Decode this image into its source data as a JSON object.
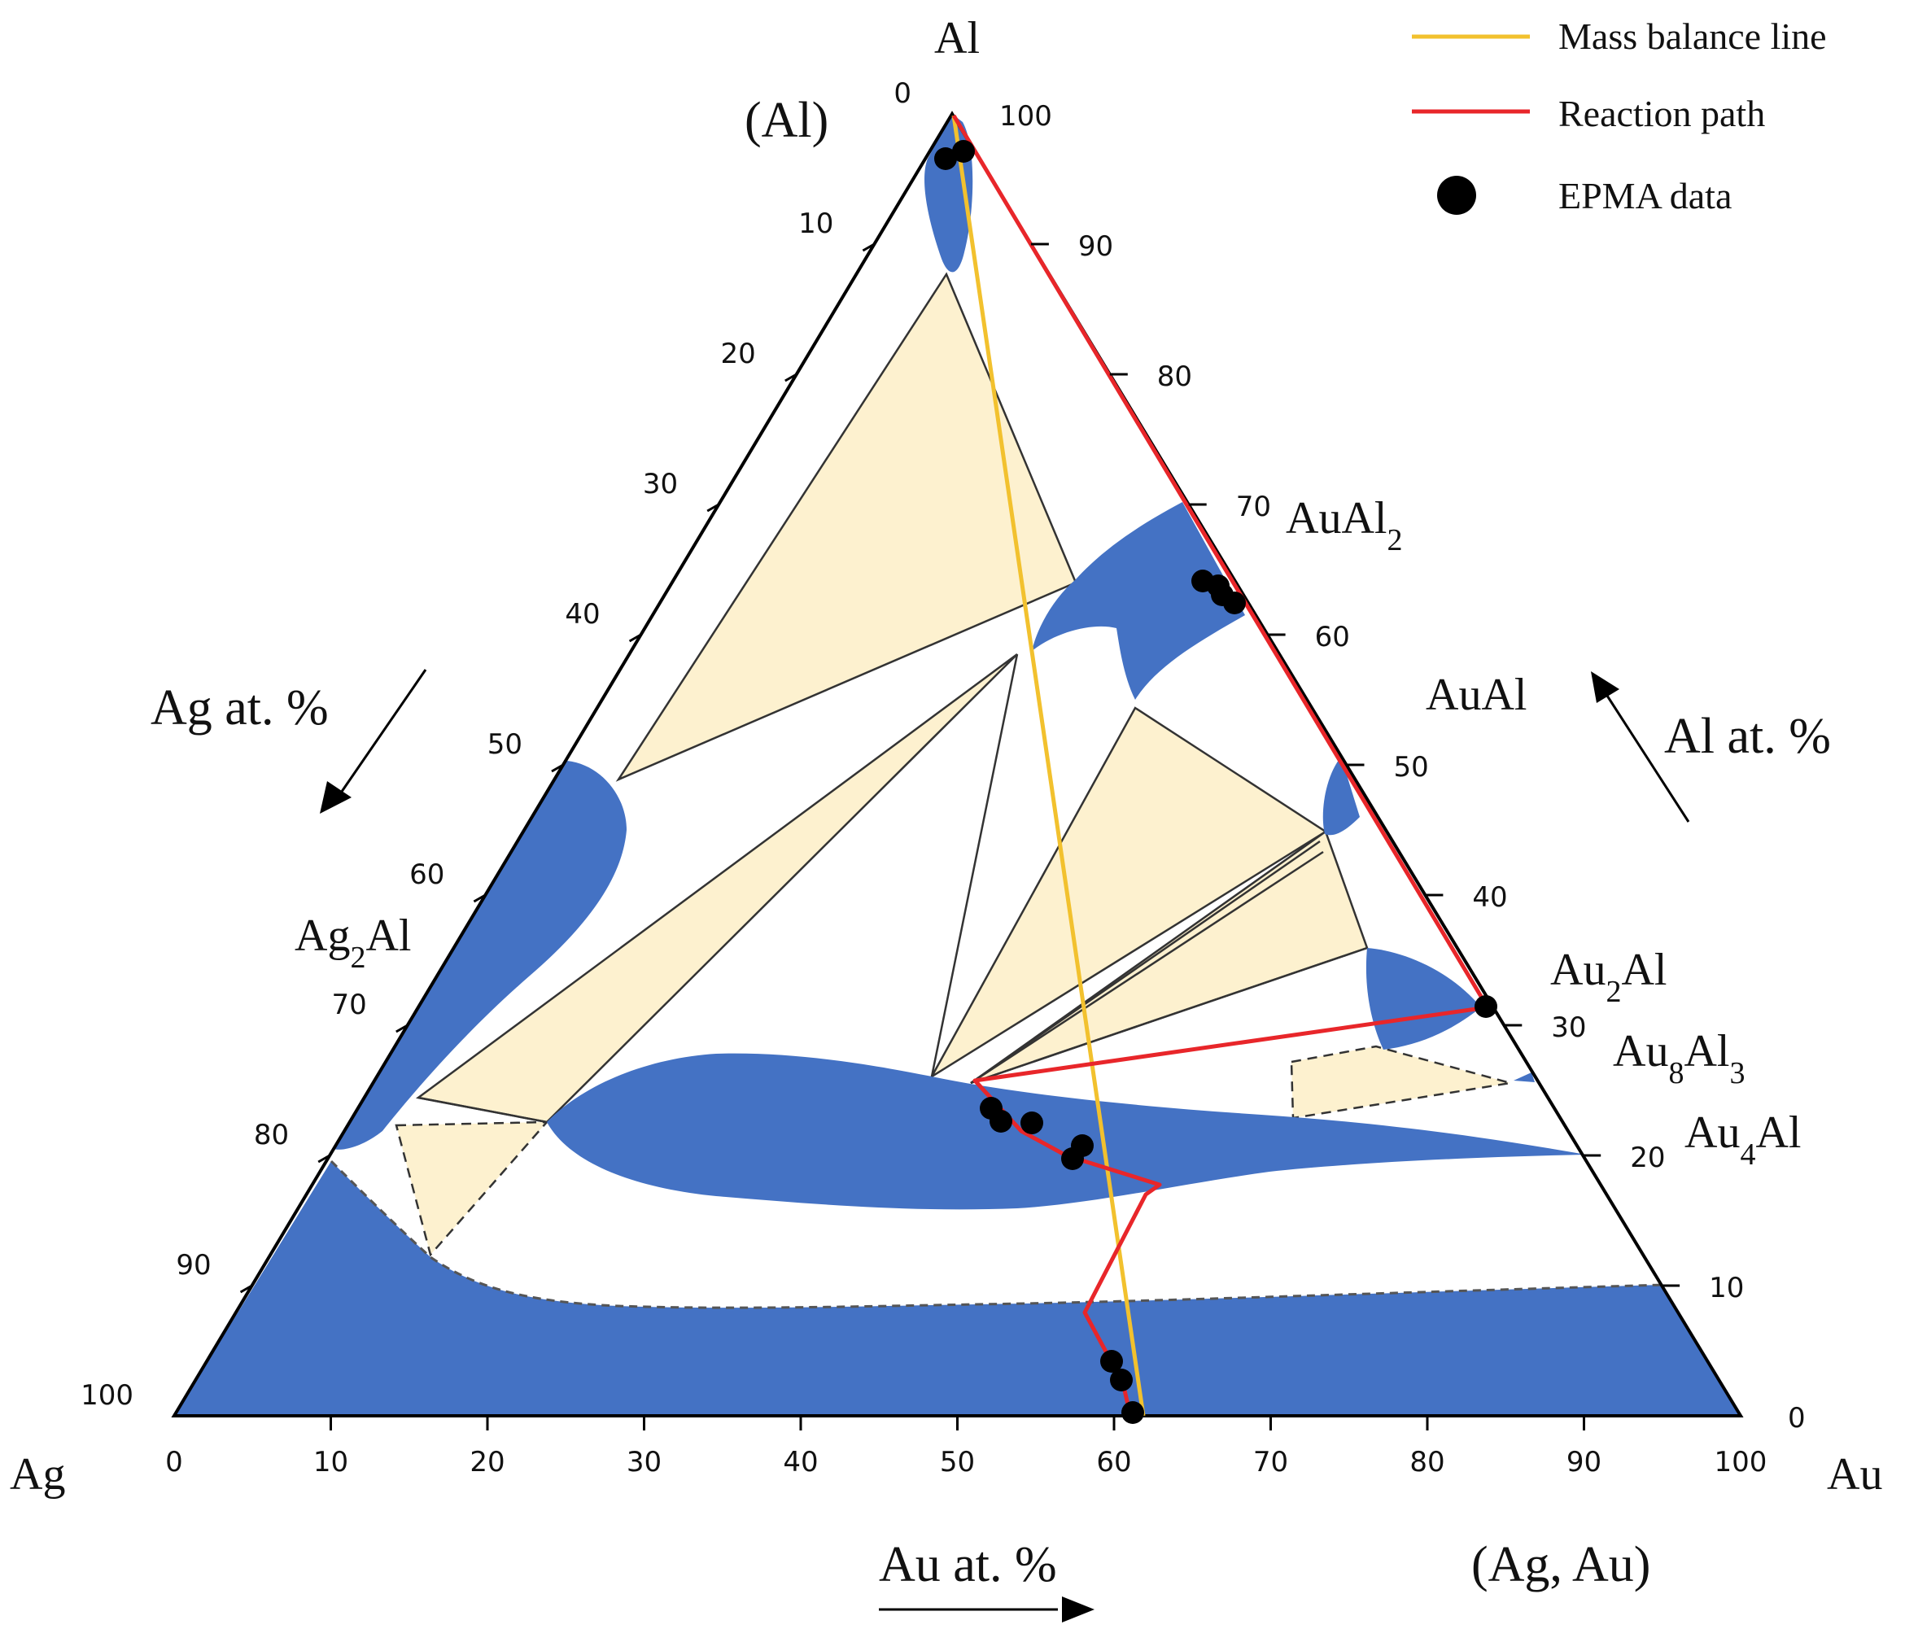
{
  "diagram": {
    "corners": {
      "top": "Al",
      "left": "Ag",
      "right": "Au"
    },
    "phase_labels": {
      "al_solid": "(Al)",
      "ag_au_solid": "(Ag, Au)",
      "auAl2": {
        "base": "AuAl",
        "sub": "2"
      },
      "auAl": "AuAl",
      "au2Al": {
        "base": "Au",
        "sub": "2",
        "rest": "Al"
      },
      "au8Al3": {
        "base": "Au",
        "sub1": "8",
        "mid": "Al",
        "sub2": "3"
      },
      "au4Al": {
        "base": "Au",
        "sub": "4",
        "rest": "Al"
      },
      "ag2Al": {
        "base": "Ag",
        "sub": "2",
        "rest": "Al"
      }
    },
    "axis_titles": {
      "ag": "Ag at. %",
      "al": "Al at. %",
      "au": "Au at. %"
    },
    "ticks": {
      "bottom": [
        "0",
        "10",
        "20",
        "30",
        "40",
        "50",
        "60",
        "70",
        "80",
        "90",
        "100"
      ],
      "left": [
        "0",
        "10",
        "20",
        "30",
        "40",
        "50",
        "60",
        "70",
        "80",
        "90",
        "100"
      ],
      "right": [
        "0",
        "10",
        "20",
        "30",
        "40",
        "50",
        "60",
        "70",
        "80",
        "90",
        "100"
      ]
    },
    "legend": [
      {
        "label": "Mass balance line",
        "color": "#f2c12e",
        "kind": "line"
      },
      {
        "label": "Reaction path",
        "color": "#e8262a",
        "kind": "line"
      },
      {
        "label": "EPMA  data",
        "color": "#000000",
        "kind": "dot"
      }
    ],
    "colors": {
      "phase_fill": "#4472c4",
      "tie_triangle_fill": "#fdf1cf",
      "outline": "#000000"
    }
  }
}
